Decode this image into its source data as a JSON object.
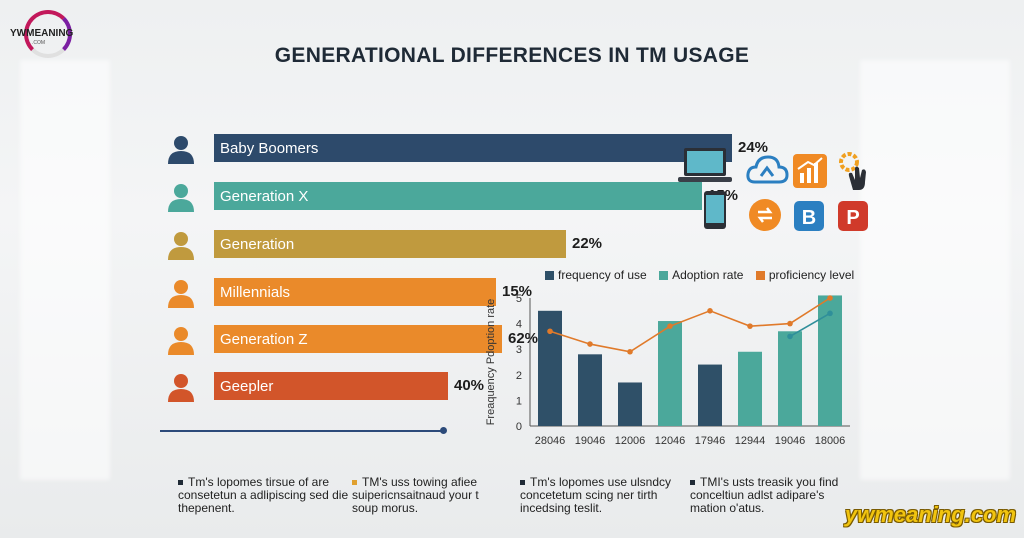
{
  "logo": {
    "text": "YWMEANING",
    "sub": ".COM"
  },
  "title": "GENERATIONAL DIFFERENCES IN TM USAGE",
  "generations": [
    {
      "label": "Baby Boomers",
      "pct_text": "24%",
      "color": "#2d4a6b"
    },
    {
      "label": "Generation X",
      "pct_text": "15%",
      "color": "#4ba89b"
    },
    {
      "label": "Generation",
      "pct_text": "22%",
      "color": "#c09a3e"
    },
    {
      "label": "Millennials",
      "pct_text": "15%",
      "color": "#ea8a2a"
    },
    {
      "label": "Generation Z",
      "pct_text": "62%",
      "color": "#ea8a2a"
    },
    {
      "label": "Geepler",
      "pct_text": "40%",
      "color": "#d2552a"
    }
  ],
  "app_icons": [
    "laptop-icon",
    "cloud-icon",
    "growth-chart-icon",
    "gear-hand-icon",
    "phone-icon",
    "sync-icon",
    "b-letter-icon",
    "p-letter-icon"
  ],
  "chart_data": {
    "type": "bar",
    "ylabel": "Freaquency Pdoption rate",
    "ylim": [
      0,
      5
    ],
    "yticks": [
      "0",
      "1",
      "2",
      "3",
      "4",
      "5"
    ],
    "categories": [
      "28046",
      "19046",
      "12006",
      "12046",
      "17946",
      "12944",
      "19046",
      "18006"
    ],
    "legend": [
      "frequency of use",
      "Adoption rate",
      "proficiency level"
    ],
    "series": [
      {
        "name": "frequency of use",
        "color": "#2f5068",
        "values": [
          4.5,
          null,
          null,
          null,
          2.4,
          null,
          null,
          null
        ]
      },
      {
        "name": "frequency of use",
        "color": "#2f5068",
        "values": [
          null,
          2.8,
          1.7,
          null,
          null,
          null,
          null,
          null
        ]
      },
      {
        "name": "Adoption rate",
        "color": "#4ba89b",
        "values": [
          null,
          null,
          null,
          4.1,
          null,
          2.9,
          3.7,
          5.1
        ]
      },
      {
        "name": "proficiency level",
        "color": "#e07a2a",
        "values": [
          3.7,
          3.2,
          2.9,
          3.9,
          4.5,
          3.9,
          4.0,
          5.0
        ]
      },
      {
        "name": "",
        "color": "#2f8f9a",
        "values": [
          null,
          null,
          null,
          null,
          null,
          null,
          3.5,
          4.4
        ]
      }
    ]
  },
  "notes": [
    {
      "text": "Tm's lopomes tirsue of are consetetun a adlipiscing sed die thepenent.",
      "color": "#1f2a36"
    },
    {
      "text": "TM's uss towing afiee suipericnsaitnaud your t soup morus.",
      "color": "#e0a030"
    },
    {
      "text": "Tm's lopomes use ulsndcy concetetum scing ner tirth incedsing teslit.",
      "color": "#1f2a36"
    },
    {
      "text": "TMI's usts treasik you find conceltiun adlst adipare's mation o'atus.",
      "color": "#1f2a36"
    }
  ],
  "brand": "ywmeaning.com"
}
